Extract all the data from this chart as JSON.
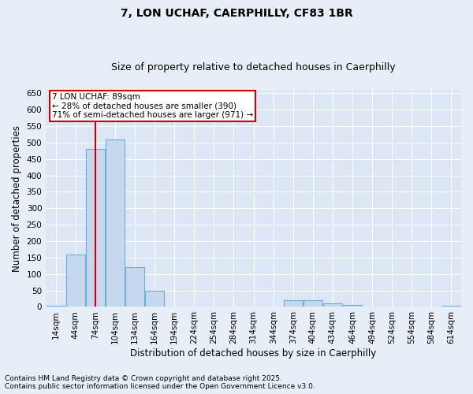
{
  "title": "7, LON UCHAF, CAERPHILLY, CF83 1BR",
  "subtitle": "Size of property relative to detached houses in Caerphilly",
  "xlabel": "Distribution of detached houses by size in Caerphilly",
  "ylabel": "Number of detached properties",
  "footnote1": "Contains HM Land Registry data © Crown copyright and database right 2025.",
  "footnote2": "Contains public sector information licensed under the Open Government Licence v3.0.",
  "annotation_title": "7 LON UCHAF: 89sqm",
  "annotation_line1": "← 28% of detached houses are smaller (390)",
  "annotation_line2": "71% of semi-detached houses are larger (971) →",
  "bin_starts": [
    14,
    44,
    74,
    104,
    134,
    164,
    194,
    224,
    254,
    284,
    314,
    344,
    374,
    404,
    434,
    464,
    494,
    524,
    554,
    584,
    614
  ],
  "bar_heights": [
    3,
    160,
    480,
    510,
    120,
    50,
    0,
    0,
    0,
    0,
    0,
    0,
    20,
    20,
    10,
    5,
    0,
    0,
    0,
    0,
    3
  ],
  "bar_color": "#c5d8ee",
  "bar_edge_color": "#6baed6",
  "vline_color": "#cc0000",
  "vline_x": 89,
  "annotation_box_color": "#cc0000",
  "plot_bg_color": "#dce6f5",
  "fig_bg_color": "#e8eef7",
  "grid_color": "#ffffff",
  "ylim": [
    0,
    660
  ],
  "yticks": [
    0,
    50,
    100,
    150,
    200,
    250,
    300,
    350,
    400,
    450,
    500,
    550,
    600,
    650
  ],
  "title_fontsize": 10,
  "subtitle_fontsize": 9,
  "axis_label_fontsize": 8.5,
  "tick_fontsize": 7.5,
  "annotation_fontsize": 7.5,
  "footnote_fontsize": 6.5
}
